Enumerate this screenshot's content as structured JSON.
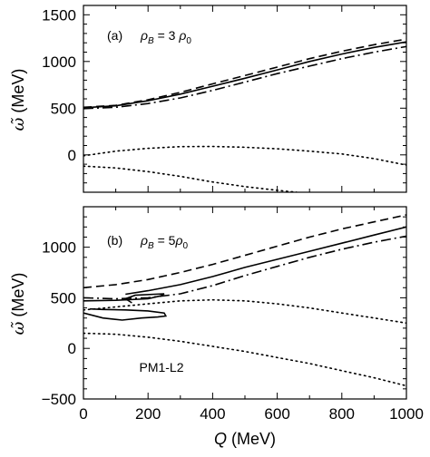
{
  "chart_data": [
    {
      "type": "line",
      "panel_label": "(a)",
      "density_label": "ρB = 3 ρ0",
      "ylabel": "ω̃ (MeV)",
      "xlabel": "",
      "xlim": [
        0,
        1000
      ],
      "ylim": [
        -400,
        1600
      ],
      "x_ticks": [],
      "y_ticks": [
        0,
        500,
        1000,
        1500
      ],
      "series": [
        {
          "style": "dashed",
          "x": [
            0,
            100,
            200,
            300,
            400,
            500,
            600,
            700,
            800,
            900,
            1000
          ],
          "y": [
            510,
            530,
            590,
            670,
            760,
            850,
            940,
            1030,
            1110,
            1180,
            1240
          ]
        },
        {
          "style": "solid",
          "x": [
            0,
            100,
            200,
            300,
            400,
            500,
            600,
            700,
            800,
            900,
            1000
          ],
          "y": [
            505,
            525,
            580,
            650,
            735,
            820,
            910,
            1000,
            1080,
            1150,
            1210
          ]
        },
        {
          "style": "dashdot",
          "x": [
            0,
            100,
            200,
            300,
            400,
            500,
            600,
            700,
            800,
            900,
            1000
          ],
          "y": [
            495,
            510,
            550,
            610,
            690,
            780,
            870,
            950,
            1030,
            1100,
            1160
          ]
        },
        {
          "style": "dotted",
          "x": [
            0,
            100,
            200,
            300,
            400,
            500,
            600,
            700,
            800,
            900,
            1000
          ],
          "y": [
            -10,
            40,
            70,
            88,
            90,
            82,
            65,
            40,
            10,
            -40,
            -110
          ]
        },
        {
          "style": "dotted",
          "x": [
            0,
            100,
            200,
            300,
            400,
            500,
            600,
            660
          ],
          "y": [
            -120,
            -140,
            -180,
            -230,
            -290,
            -340,
            -380,
            -400
          ]
        }
      ]
    },
    {
      "type": "line",
      "panel_label": "(b)",
      "density_label": "ρB = 5ρ0",
      "annotation": "PM1-L2",
      "ylabel": "ω̃ (MeV)",
      "xlabel": "Q (MeV)",
      "xlim": [
        0,
        1000
      ],
      "ylim": [
        -500,
        1400
      ],
      "x_ticks": [
        0,
        200,
        400,
        600,
        800,
        1000
      ],
      "y_ticks": [
        -500,
        0,
        500,
        1000
      ],
      "series": [
        {
          "style": "dashed",
          "x": [
            0,
            100,
            200,
            300,
            400,
            500,
            600,
            700,
            800,
            900,
            1000
          ],
          "y": [
            600,
            630,
            680,
            750,
            830,
            920,
            1010,
            1100,
            1180,
            1250,
            1320
          ]
        },
        {
          "style": "solid",
          "x": [
            130,
            200,
            300,
            400,
            500,
            600,
            700,
            800,
            900,
            1000
          ],
          "y": [
            535,
            570,
            630,
            710,
            800,
            880,
            960,
            1040,
            1120,
            1200
          ]
        },
        {
          "style": "solid",
          "x": [
            150,
            130,
            160,
            250,
            240,
            200,
            100,
            0
          ],
          "y": [
            450,
            490,
            525,
            540,
            520,
            490,
            475,
            470
          ]
        },
        {
          "style": "solid",
          "x": [
            0,
            60,
            120,
            180,
            230,
            255,
            250,
            200,
            130,
            60,
            20
          ],
          "y": [
            350,
            300,
            280,
            300,
            310,
            320,
            350,
            370,
            380,
            385,
            390
          ]
        },
        {
          "style": "dashdot",
          "x": [
            0,
            100,
            200,
            300,
            400,
            500,
            600,
            700,
            800,
            900,
            1000
          ],
          "y": [
            500,
            490,
            500,
            540,
            620,
            720,
            810,
            900,
            980,
            1050,
            1110
          ]
        },
        {
          "style": "dotted",
          "x": [
            0,
            100,
            200,
            300,
            400,
            500,
            600,
            700,
            800,
            900,
            1000
          ],
          "y": [
            380,
            410,
            440,
            470,
            480,
            470,
            440,
            400,
            350,
            300,
            250
          ]
        },
        {
          "style": "dotted",
          "x": [
            0,
            100,
            200,
            300,
            400,
            500,
            600,
            700,
            800,
            900,
            1000
          ],
          "y": [
            150,
            140,
            110,
            70,
            20,
            -30,
            -90,
            -150,
            -220,
            -290,
            -370
          ]
        }
      ]
    }
  ]
}
